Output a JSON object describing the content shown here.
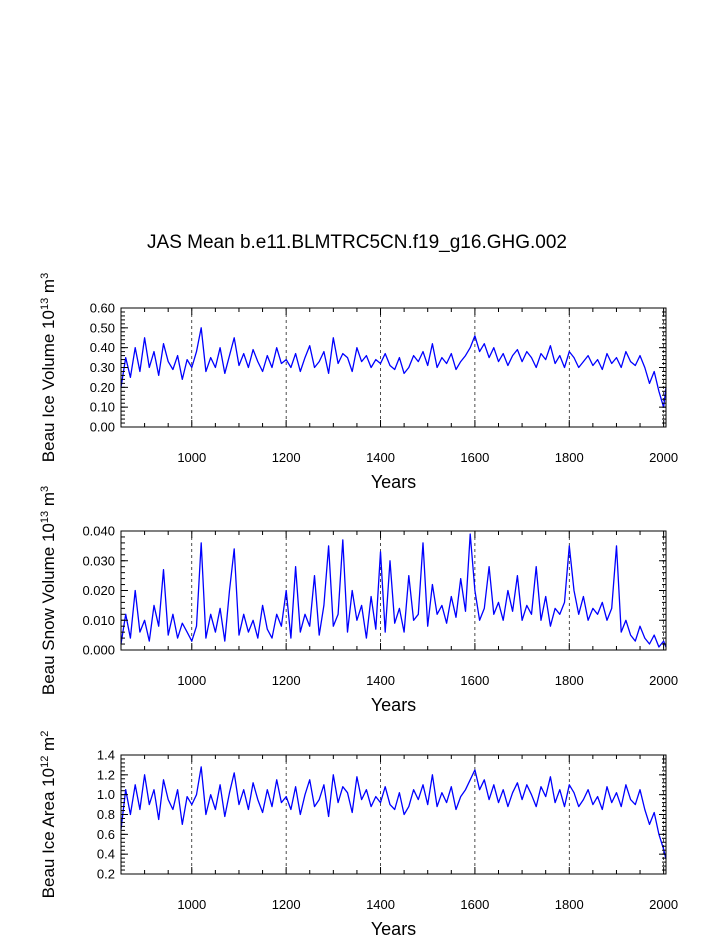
{
  "title": "JAS Mean b.e11.BLMTRC5CN.f19_g16.GHG.002",
  "colors": {
    "series": "#0000ff",
    "axis": "#000000",
    "grid": "#000000"
  },
  "chart_data": [
    {
      "type": "line",
      "name": "ice-volume",
      "ylabel_main": "Beau Ice Volume 10",
      "ylabel_exp": "13",
      "ylabel_unit": "m",
      "ylabel_unit_exp": "3",
      "xlabel": "Years",
      "xlim": [
        850,
        2005
      ],
      "ylim": [
        0.0,
        0.6
      ],
      "xticks": [
        1000,
        1200,
        1400,
        1600,
        1800,
        2000
      ],
      "xtick_labels": [
        "1000",
        "1200",
        "1400",
        "1600",
        "1800",
        "2000"
      ],
      "yticks": [
        0.0,
        0.1,
        0.2,
        0.3,
        0.4,
        0.5,
        0.6
      ],
      "ytick_labels": [
        "0.00",
        "0.10",
        "0.20",
        "0.30",
        "0.40",
        "0.50",
        "0.60"
      ],
      "series": [
        {
          "name": "Beau Ice Volume",
          "x": [
            850,
            860,
            870,
            880,
            890,
            900,
            910,
            920,
            930,
            940,
            950,
            960,
            970,
            980,
            990,
            1000,
            1010,
            1020,
            1030,
            1040,
            1050,
            1060,
            1070,
            1080,
            1090,
            1100,
            1110,
            1120,
            1130,
            1140,
            1150,
            1160,
            1170,
            1180,
            1190,
            1200,
            1210,
            1220,
            1230,
            1240,
            1250,
            1260,
            1270,
            1280,
            1290,
            1300,
            1310,
            1320,
            1330,
            1340,
            1350,
            1360,
            1370,
            1380,
            1390,
            1400,
            1410,
            1420,
            1430,
            1440,
            1450,
            1460,
            1470,
            1480,
            1490,
            1500,
            1510,
            1520,
            1530,
            1540,
            1550,
            1560,
            1570,
            1580,
            1590,
            1600,
            1610,
            1620,
            1630,
            1640,
            1650,
            1660,
            1670,
            1680,
            1690,
            1700,
            1710,
            1720,
            1730,
            1740,
            1750,
            1760,
            1770,
            1780,
            1790,
            1800,
            1810,
            1820,
            1830,
            1840,
            1850,
            1860,
            1870,
            1880,
            1890,
            1900,
            1910,
            1920,
            1930,
            1940,
            1950,
            1960,
            1970,
            1980,
            1990,
            2000,
            2005
          ],
          "values": [
            0.2,
            0.35,
            0.25,
            0.4,
            0.28,
            0.45,
            0.3,
            0.38,
            0.26,
            0.42,
            0.33,
            0.29,
            0.36,
            0.24,
            0.34,
            0.3,
            0.38,
            0.5,
            0.28,
            0.35,
            0.3,
            0.4,
            0.27,
            0.36,
            0.45,
            0.31,
            0.37,
            0.3,
            0.39,
            0.33,
            0.28,
            0.36,
            0.3,
            0.4,
            0.32,
            0.34,
            0.3,
            0.37,
            0.28,
            0.35,
            0.41,
            0.3,
            0.33,
            0.38,
            0.27,
            0.45,
            0.32,
            0.37,
            0.35,
            0.28,
            0.4,
            0.33,
            0.36,
            0.3,
            0.34,
            0.32,
            0.37,
            0.31,
            0.29,
            0.35,
            0.27,
            0.3,
            0.36,
            0.33,
            0.38,
            0.31,
            0.42,
            0.3,
            0.35,
            0.32,
            0.37,
            0.29,
            0.33,
            0.36,
            0.4,
            0.46,
            0.38,
            0.42,
            0.35,
            0.4,
            0.33,
            0.37,
            0.31,
            0.36,
            0.39,
            0.33,
            0.38,
            0.35,
            0.3,
            0.37,
            0.34,
            0.41,
            0.32,
            0.36,
            0.3,
            0.38,
            0.35,
            0.3,
            0.33,
            0.36,
            0.31,
            0.34,
            0.29,
            0.37,
            0.32,
            0.35,
            0.3,
            0.38,
            0.33,
            0.31,
            0.36,
            0.3,
            0.22,
            0.28,
            0.18,
            0.1,
            0.2
          ]
        }
      ]
    },
    {
      "type": "line",
      "name": "snow-volume",
      "ylabel_main": "Beau Snow Volume 10",
      "ylabel_exp": "13",
      "ylabel_unit": "m",
      "ylabel_unit_exp": "3",
      "xlabel": "Years",
      "xlim": [
        850,
        2005
      ],
      "ylim": [
        0.0,
        0.04
      ],
      "xticks": [
        1000,
        1200,
        1400,
        1600,
        1800,
        2000
      ],
      "xtick_labels": [
        "1000",
        "1200",
        "1400",
        "1600",
        "1800",
        "2000"
      ],
      "yticks": [
        0.0,
        0.01,
        0.02,
        0.03,
        0.04
      ],
      "ytick_labels": [
        "0.000",
        "0.010",
        "0.020",
        "0.030",
        "0.040"
      ],
      "series": [
        {
          "name": "Beau Snow Volume",
          "x": [
            850,
            860,
            870,
            880,
            890,
            900,
            910,
            920,
            930,
            940,
            950,
            960,
            970,
            980,
            990,
            1000,
            1010,
            1020,
            1030,
            1040,
            1050,
            1060,
            1070,
            1080,
            1090,
            1100,
            1110,
            1120,
            1130,
            1140,
            1150,
            1160,
            1170,
            1180,
            1190,
            1200,
            1210,
            1220,
            1230,
            1240,
            1250,
            1260,
            1270,
            1280,
            1290,
            1300,
            1310,
            1320,
            1330,
            1340,
            1350,
            1360,
            1370,
            1380,
            1390,
            1400,
            1410,
            1420,
            1430,
            1440,
            1450,
            1460,
            1470,
            1480,
            1490,
            1500,
            1510,
            1520,
            1530,
            1540,
            1550,
            1560,
            1570,
            1580,
            1590,
            1600,
            1610,
            1620,
            1630,
            1640,
            1650,
            1660,
            1670,
            1680,
            1690,
            1700,
            1710,
            1720,
            1730,
            1740,
            1750,
            1760,
            1770,
            1780,
            1790,
            1800,
            1810,
            1820,
            1830,
            1840,
            1850,
            1860,
            1870,
            1880,
            1890,
            1900,
            1910,
            1920,
            1930,
            1940,
            1950,
            1960,
            1970,
            1980,
            1990,
            2000,
            2005
          ],
          "values": [
            0.002,
            0.012,
            0.004,
            0.02,
            0.006,
            0.01,
            0.003,
            0.015,
            0.008,
            0.027,
            0.005,
            0.012,
            0.004,
            0.009,
            0.006,
            0.003,
            0.008,
            0.036,
            0.004,
            0.012,
            0.006,
            0.014,
            0.003,
            0.02,
            0.034,
            0.005,
            0.012,
            0.006,
            0.01,
            0.004,
            0.015,
            0.007,
            0.004,
            0.012,
            0.008,
            0.02,
            0.004,
            0.028,
            0.006,
            0.012,
            0.008,
            0.025,
            0.005,
            0.015,
            0.035,
            0.008,
            0.012,
            0.037,
            0.006,
            0.02,
            0.01,
            0.015,
            0.004,
            0.018,
            0.007,
            0.033,
            0.006,
            0.03,
            0.009,
            0.014,
            0.006,
            0.025,
            0.01,
            0.012,
            0.036,
            0.008,
            0.022,
            0.012,
            0.015,
            0.009,
            0.018,
            0.011,
            0.024,
            0.013,
            0.039,
            0.02,
            0.01,
            0.014,
            0.028,
            0.012,
            0.016,
            0.01,
            0.02,
            0.013,
            0.025,
            0.01,
            0.015,
            0.012,
            0.028,
            0.01,
            0.018,
            0.008,
            0.014,
            0.012,
            0.016,
            0.035,
            0.02,
            0.012,
            0.018,
            0.01,
            0.014,
            0.012,
            0.016,
            0.01,
            0.014,
            0.035,
            0.006,
            0.01,
            0.005,
            0.003,
            0.008,
            0.004,
            0.002,
            0.005,
            0.001,
            0.003,
            0.001
          ]
        }
      ]
    },
    {
      "type": "line",
      "name": "ice-area",
      "ylabel_main": "Beau Ice Area 10",
      "ylabel_exp": "12",
      "ylabel_unit": "m",
      "ylabel_unit_exp": "2",
      "xlabel": "Years",
      "xlim": [
        850,
        2005
      ],
      "ylim": [
        0.2,
        1.4
      ],
      "xticks": [
        1000,
        1200,
        1400,
        1600,
        1800,
        2000
      ],
      "xtick_labels": [
        "1000",
        "1200",
        "1400",
        "1600",
        "1800",
        "2000"
      ],
      "yticks": [
        0.2,
        0.4,
        0.6,
        0.8,
        1.0,
        1.2,
        1.4
      ],
      "ytick_labels": [
        "0.2",
        "0.4",
        "0.6",
        "0.8",
        "1.0",
        "1.2",
        "1.4"
      ],
      "series": [
        {
          "name": "Beau Ice Area",
          "x": [
            850,
            860,
            870,
            880,
            890,
            900,
            910,
            920,
            930,
            940,
            950,
            960,
            970,
            980,
            990,
            1000,
            1010,
            1020,
            1030,
            1040,
            1050,
            1060,
            1070,
            1080,
            1090,
            1100,
            1110,
            1120,
            1130,
            1140,
            1150,
            1160,
            1170,
            1180,
            1190,
            1200,
            1210,
            1220,
            1230,
            1240,
            1250,
            1260,
            1270,
            1280,
            1290,
            1300,
            1310,
            1320,
            1330,
            1340,
            1350,
            1360,
            1370,
            1380,
            1390,
            1400,
            1410,
            1420,
            1430,
            1440,
            1450,
            1460,
            1470,
            1480,
            1490,
            1500,
            1510,
            1520,
            1530,
            1540,
            1550,
            1560,
            1570,
            1580,
            1590,
            1600,
            1610,
            1620,
            1630,
            1640,
            1650,
            1660,
            1670,
            1680,
            1690,
            1700,
            1710,
            1720,
            1730,
            1740,
            1750,
            1760,
            1770,
            1780,
            1790,
            1800,
            1810,
            1820,
            1830,
            1840,
            1850,
            1860,
            1870,
            1880,
            1890,
            1900,
            1910,
            1920,
            1930,
            1940,
            1950,
            1960,
            1970,
            1980,
            1990,
            2000,
            2005
          ],
          "values": [
            0.65,
            1.05,
            0.8,
            1.1,
            0.85,
            1.2,
            0.9,
            1.05,
            0.75,
            1.15,
            0.95,
            0.85,
            1.05,
            0.7,
            0.98,
            0.9,
            1.0,
            1.28,
            0.8,
            1.0,
            0.85,
            1.1,
            0.78,
            1.02,
            1.22,
            0.9,
            1.05,
            0.85,
            1.12,
            0.95,
            0.82,
            1.05,
            0.88,
            1.15,
            0.92,
            0.98,
            0.85,
            1.08,
            0.8,
            1.0,
            1.15,
            0.88,
            0.95,
            1.1,
            0.78,
            1.2,
            0.92,
            1.08,
            1.02,
            0.82,
            1.18,
            0.95,
            1.05,
            0.88,
            0.98,
            0.92,
            1.08,
            0.9,
            0.85,
            1.02,
            0.8,
            0.88,
            1.05,
            0.95,
            1.1,
            0.9,
            1.2,
            0.88,
            1.02,
            0.92,
            1.08,
            0.85,
            0.98,
            1.05,
            1.15,
            1.25,
            1.05,
            1.15,
            0.95,
            1.1,
            0.92,
            1.05,
            0.88,
            1.02,
            1.12,
            0.95,
            1.1,
            1.0,
            0.88,
            1.08,
            0.98,
            1.18,
            0.92,
            1.05,
            0.88,
            1.1,
            1.02,
            0.88,
            0.95,
            1.05,
            0.9,
            0.98,
            0.85,
            1.08,
            0.92,
            1.02,
            0.88,
            1.1,
            0.95,
            0.9,
            1.05,
            0.85,
            0.7,
            0.82,
            0.6,
            0.45,
            0.35
          ]
        }
      ]
    }
  ]
}
